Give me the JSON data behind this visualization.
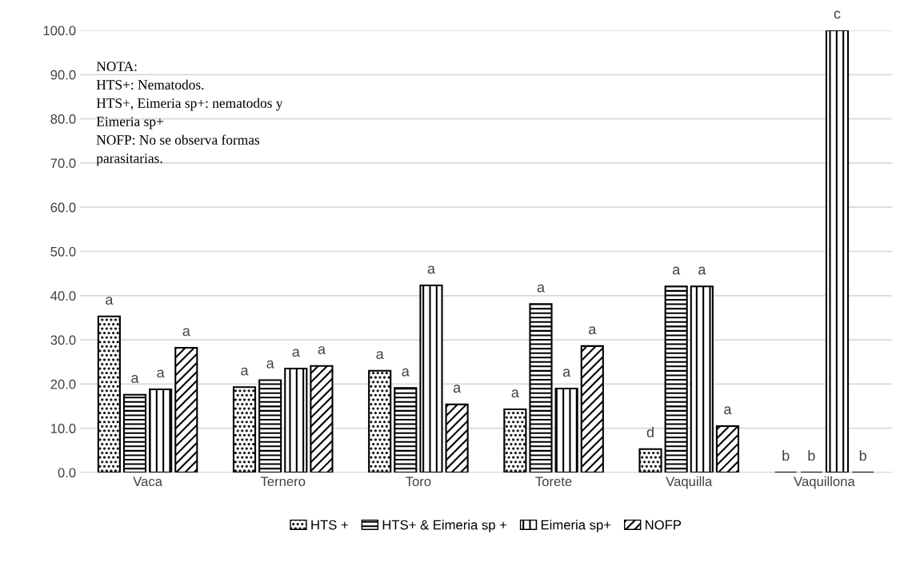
{
  "chart_data": {
    "type": "bar",
    "categories": [
      "Vaca",
      "Ternero",
      "Toro",
      "Torete",
      "Vaquilla",
      "Vaquillona"
    ],
    "series": [
      {
        "name": "HTS +",
        "color": "#000000",
        "values": [
          35.3,
          19.3,
          23.0,
          14.3,
          5.3,
          0
        ],
        "value_labels": [
          "a",
          "a",
          "a",
          "a",
          "d",
          "b"
        ]
      },
      {
        "name": "HTS+ & Eimeria sp +",
        "color": "#000000",
        "values": [
          17.6,
          20.9,
          19.1,
          38.1,
          42.1,
          0
        ],
        "value_labels": [
          "a",
          "a",
          "a",
          "a",
          "a",
          "b"
        ]
      },
      {
        "name": "Eimeria sp+",
        "color": "#000000",
        "values": [
          18.8,
          23.5,
          42.3,
          19.0,
          42.1,
          100
        ],
        "value_labels": [
          "a",
          "a",
          "a",
          "a",
          "a",
          "c"
        ]
      },
      {
        "name": "NOFP",
        "color": "#000000",
        "values": [
          28.2,
          24.1,
          15.4,
          28.6,
          10.5,
          0
        ],
        "value_labels": [
          "a",
          "a",
          "a",
          "a",
          "a",
          "b"
        ]
      }
    ],
    "ylim": [
      0,
      100
    ],
    "yticks": [
      {
        "value": 0,
        "label": "0.0"
      },
      {
        "value": 10,
        "label": "10.0"
      },
      {
        "value": 20,
        "label": "20.0"
      },
      {
        "value": 30,
        "label": "30.0"
      },
      {
        "value": 40,
        "label": "40.0"
      },
      {
        "value": 50,
        "label": "50.0"
      },
      {
        "value": 60,
        "label": "60.0"
      },
      {
        "value": 70,
        "label": "70.0"
      },
      {
        "value": 80,
        "label": "80.0"
      },
      {
        "value": 90,
        "label": "90.0"
      },
      {
        "value": 100,
        "label": "100.0"
      }
    ],
    "grid": "y",
    "legend": "bottom",
    "annotations": [
      "NOTA:\nHTS+: Nematodos.\nHTS+, Eimeria sp+: nematodos y\nEimeria sp+\nNOFP: No se observa formas\nparasitarias."
    ]
  }
}
